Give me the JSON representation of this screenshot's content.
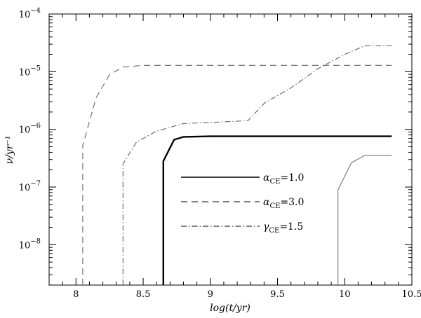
{
  "chart_data": {
    "type": "line",
    "xlabel": "log(t/yr)",
    "ylabel": "ν/yr⁻¹",
    "xlim": [
      7.8,
      10.5
    ],
    "ylim": [
      -8.7,
      -4.0
    ],
    "y_scale": "log",
    "grid": false,
    "legend_position": "center-right",
    "x_ticks": [
      {
        "value": 8,
        "label": "8"
      },
      {
        "value": 8.5,
        "label": "8.5"
      },
      {
        "value": 9,
        "label": "9"
      },
      {
        "value": 9.5,
        "label": "9.5"
      },
      {
        "value": 10,
        "label": "10"
      },
      {
        "value": 10.5,
        "label": "10.5"
      }
    ],
    "y_ticks": [
      {
        "value": -4,
        "mant": "10",
        "exp": "−4"
      },
      {
        "value": -5,
        "mant": "10",
        "exp": "−5"
      },
      {
        "value": -6,
        "mant": "10",
        "exp": "−6"
      },
      {
        "value": -7,
        "mant": "10",
        "exp": "−7"
      },
      {
        "value": -8,
        "mant": "10",
        "exp": "−8"
      }
    ],
    "series": [
      {
        "name": "αCE=1.0",
        "legend_symbol": "α",
        "legend_sub": "CE",
        "legend_value": "=1.0",
        "style": "solid-thick",
        "color": "#000000",
        "points": [
          [
            8.65,
            -8.7
          ],
          [
            8.65,
            -6.55
          ],
          [
            8.73,
            -6.18
          ],
          [
            8.8,
            -6.13
          ],
          [
            9.0,
            -6.12
          ],
          [
            10.35,
            -6.12
          ]
        ]
      },
      {
        "name": "αCE=3.0",
        "legend_symbol": "α",
        "legend_sub": "CE",
        "legend_value": "=3.0",
        "style": "dashed",
        "color": "#666666",
        "points": [
          [
            8.05,
            -8.7
          ],
          [
            8.05,
            -6.28
          ],
          [
            8.15,
            -5.45
          ],
          [
            8.25,
            -5.05
          ],
          [
            8.35,
            -4.92
          ],
          [
            8.5,
            -4.89
          ],
          [
            10.35,
            -4.89
          ]
        ]
      },
      {
        "name": "γCE=1.5",
        "legend_symbol": "γ",
        "legend_sub": "CE",
        "legend_value": "=1.5",
        "style": "dash-dot",
        "color": "#555555",
        "points": [
          [
            8.35,
            -8.7
          ],
          [
            8.35,
            -6.6
          ],
          [
            8.45,
            -6.22
          ],
          [
            8.6,
            -6.03
          ],
          [
            8.8,
            -5.9
          ],
          [
            9.0,
            -5.88
          ],
          [
            9.28,
            -5.85
          ],
          [
            9.4,
            -5.55
          ],
          [
            9.6,
            -5.28
          ],
          [
            9.8,
            -4.95
          ],
          [
            10.0,
            -4.7
          ],
          [
            10.15,
            -4.55
          ],
          [
            10.35,
            -4.55
          ]
        ]
      },
      {
        "name": "",
        "style": "solid-thin",
        "color": "#666666",
        "points": [
          [
            9.95,
            -8.7
          ],
          [
            9.95,
            -7.05
          ],
          [
            10.05,
            -6.58
          ],
          [
            10.15,
            -6.45
          ],
          [
            10.35,
            -6.45
          ]
        ]
      }
    ]
  }
}
